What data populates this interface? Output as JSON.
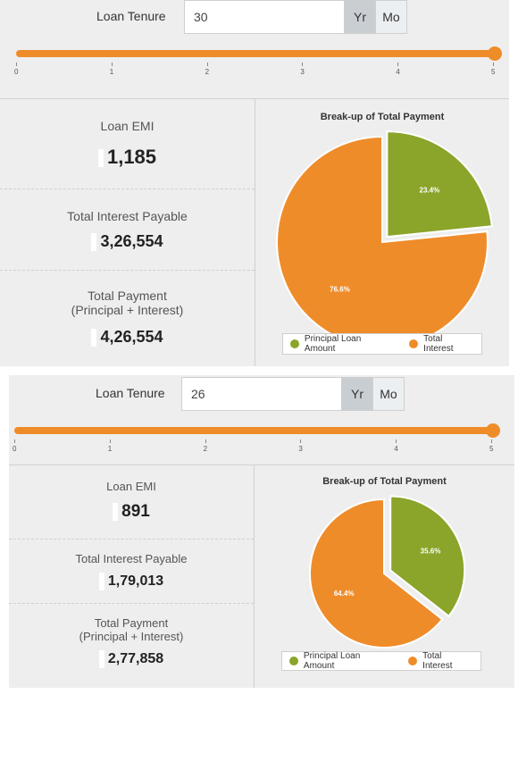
{
  "calculators": [
    {
      "tenure_label": "Loan Tenure",
      "tenure_value": "30",
      "unit_yr": "Yr",
      "unit_mo": "Mo",
      "slider_value": 5,
      "slider_ticks": [
        "0",
        "1",
        "2",
        "3",
        "4",
        "5"
      ],
      "emi_label": "Loan EMI",
      "emi_value": "1,185",
      "interest_label": "Total Interest Payable",
      "interest_value": "3,26,554",
      "payment_label_line1": "Total Payment",
      "payment_label_line2": "(Principal + Interest)",
      "payment_value": "4,26,554",
      "chart_title": "Break-up of Total Payment",
      "principal_pct_label": "23.4%",
      "interest_pct_label": "76.6%",
      "legend_principal": "Principal Loan Amount",
      "legend_interest": "Total Interest"
    },
    {
      "tenure_label": "Loan Tenure",
      "tenure_value": "26",
      "unit_yr": "Yr",
      "unit_mo": "Mo",
      "slider_value": 5,
      "slider_ticks": [
        "0",
        "1",
        "2",
        "3",
        "4",
        "5"
      ],
      "emi_label": "Loan EMI",
      "emi_value": "891",
      "interest_label": "Total Interest Payable",
      "interest_value": "1,79,013",
      "payment_label_line1": "Total Payment",
      "payment_label_line2": "(Principal + Interest)",
      "payment_value": "2,77,858",
      "chart_title": "Break-up of Total Payment",
      "principal_pct_label": "35.6%",
      "interest_pct_label": "64.4%",
      "legend_principal": "Principal Loan Amount",
      "legend_interest": "Total Interest"
    }
  ],
  "colors": {
    "principal": "#8aa52a",
    "interest": "#ef8c2a",
    "slider": "#ef8c2a"
  },
  "chart_data": [
    {
      "type": "pie",
      "title": "Break-up of Total Payment",
      "categories": [
        "Principal Loan Amount",
        "Total Interest"
      ],
      "values": [
        23.4,
        76.6
      ]
    },
    {
      "type": "pie",
      "title": "Break-up of Total Payment",
      "categories": [
        "Principal Loan Amount",
        "Total Interest"
      ],
      "values": [
        35.6,
        64.4
      ]
    }
  ]
}
